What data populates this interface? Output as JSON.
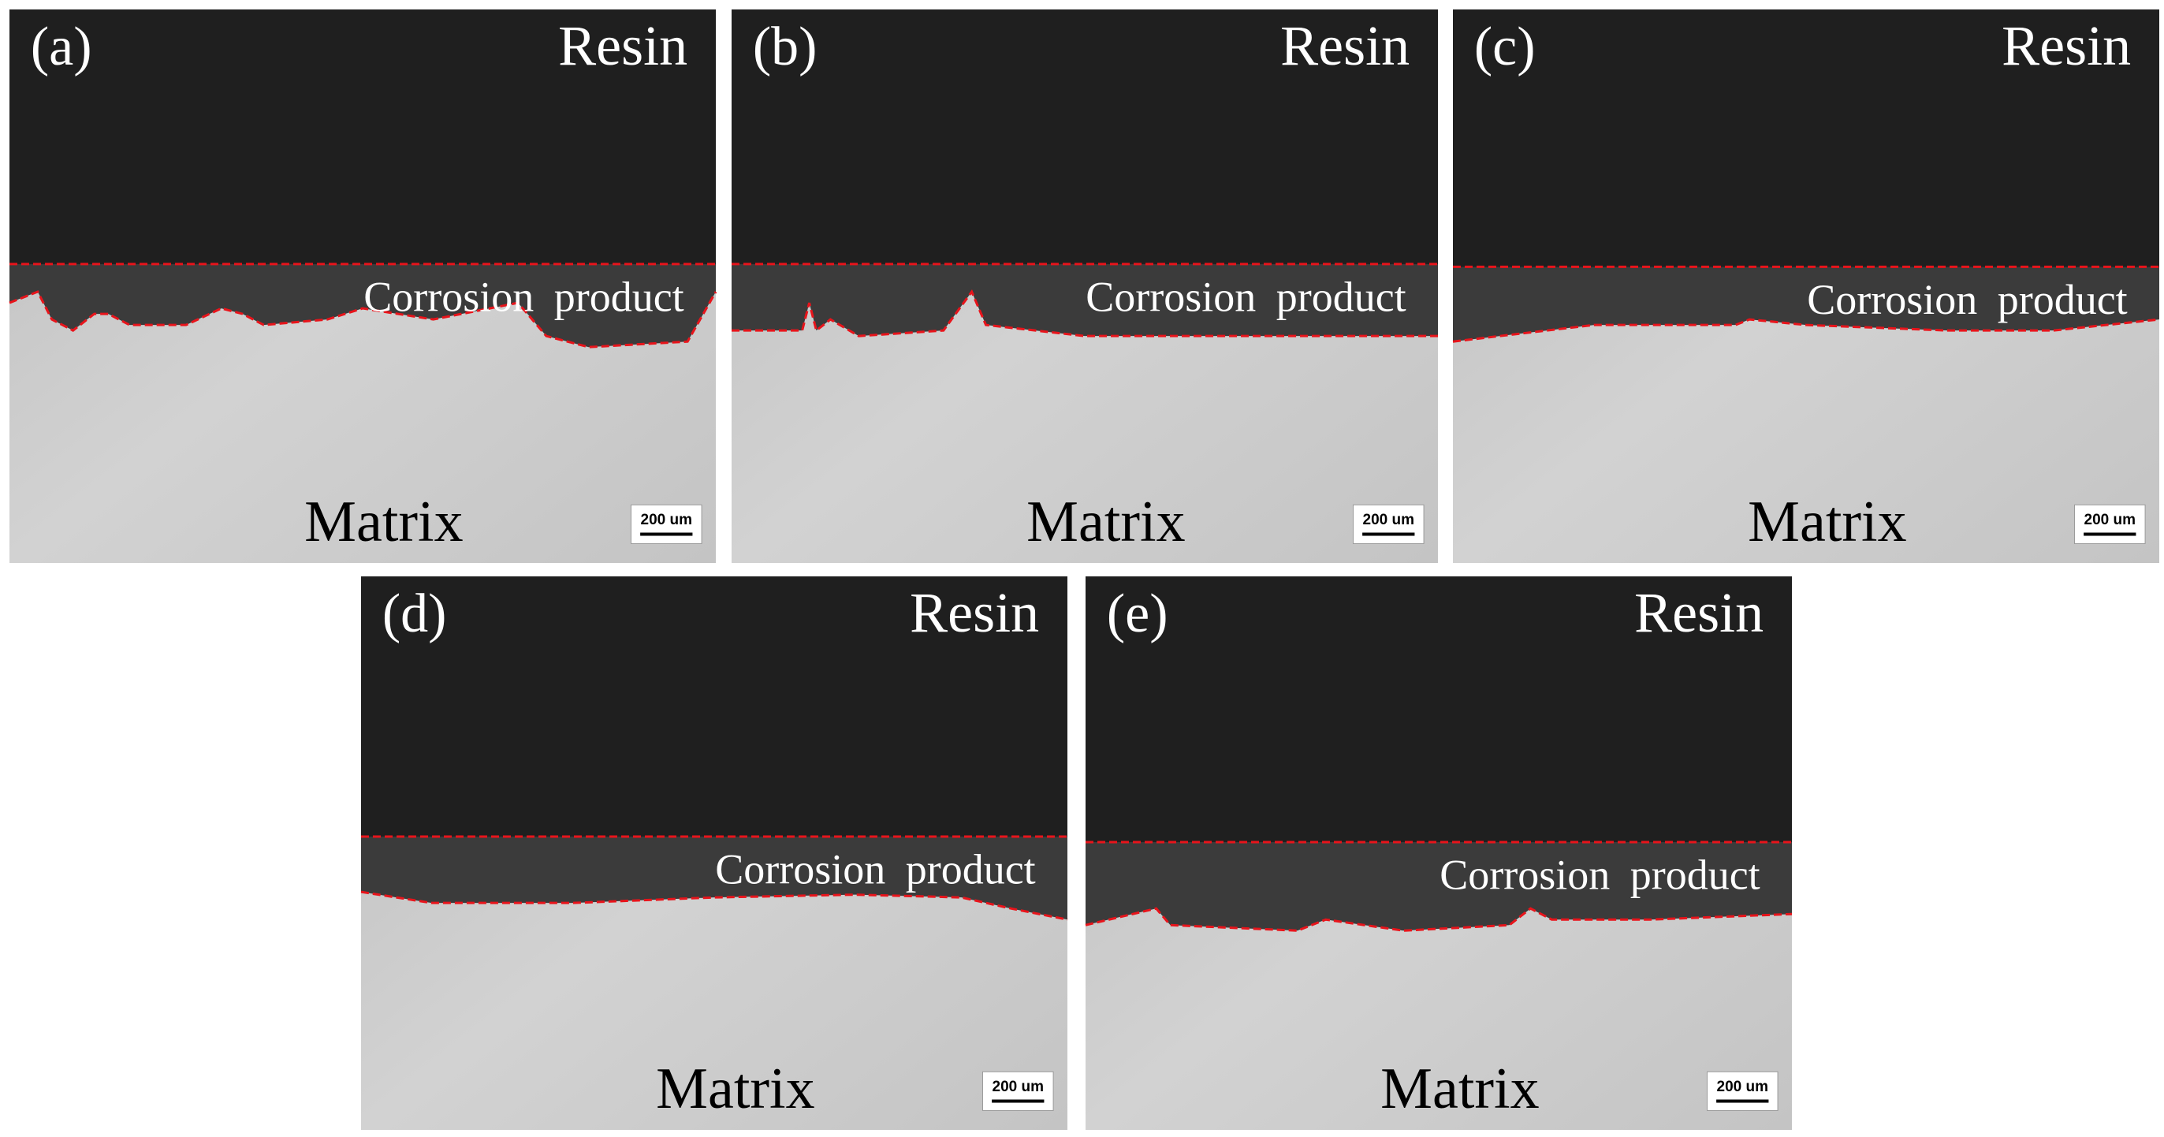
{
  "panels": [
    {
      "label": "(a)",
      "top": "Resin",
      "middle": "Corrosion product",
      "bottom": "Matrix",
      "scale_bar": "200 um"
    },
    {
      "label": "(b)",
      "top": "Resin",
      "middle": "Corrosion product",
      "bottom": "Matrix",
      "scale_bar": "200 um"
    },
    {
      "label": "(c)",
      "top": "Resin",
      "middle": "Corrosion product",
      "bottom": "Matrix",
      "scale_bar": "200 um"
    },
    {
      "label": "(d)",
      "top": "Resin",
      "middle": "Corrosion product",
      "bottom": "Matrix",
      "scale_bar": "200 um"
    },
    {
      "label": "(e)",
      "top": "Resin",
      "middle": "Corrosion product",
      "bottom": "Matrix",
      "scale_bar": "200 um"
    }
  ]
}
